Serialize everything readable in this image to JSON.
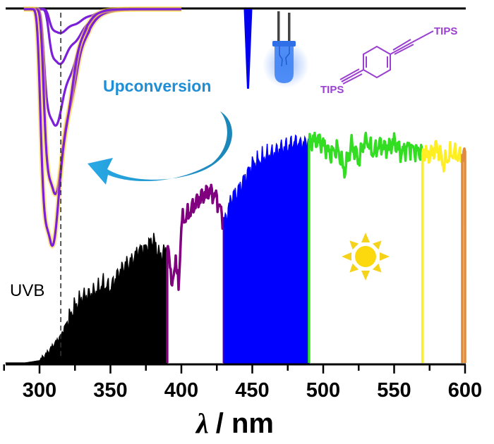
{
  "chart_data": {
    "type": "area",
    "title": "",
    "xlabel_symbol": "λ",
    "xlabel_unit": "/ nm",
    "ylabel": "",
    "xlim": [
      276,
      600
    ],
    "xticks": [
      300,
      350,
      400,
      450,
      500,
      550,
      600
    ],
    "xtick_labels": [
      "300",
      "350",
      "400",
      "450",
      "500",
      "550",
      "600"
    ],
    "grid": false,
    "annotations": {
      "uvb_label": "UVB",
      "uvb_line_nm": 315,
      "upconversion_label": "Upconversion",
      "molecule_label_top": "TIPS",
      "molecule_label_bottom": "TIPS"
    },
    "solar_spectrum": {
      "relative_scale": "0-1",
      "segments": [
        {
          "name": "UV",
          "color": "#000000",
          "range": [
            276,
            390
          ],
          "fill": true
        },
        {
          "name": "violet",
          "color": "#800080",
          "range": [
            390,
            430
          ],
          "fill": false
        },
        {
          "name": "blue",
          "color": "#0000ff",
          "range": [
            430,
            490
          ],
          "fill": true
        },
        {
          "name": "green",
          "color": "#33dd22",
          "range": [
            490,
            570
          ],
          "fill": false
        },
        {
          "name": "yellow",
          "color": "#ffee22",
          "range": [
            570,
            598
          ],
          "fill": false
        },
        {
          "name": "orange",
          "color": "#e08a40",
          "range": [
            598,
            600
          ],
          "fill": false
        }
      ],
      "x": [
        276,
        290,
        300,
        305,
        310,
        315,
        320,
        325,
        330,
        335,
        340,
        345,
        350,
        355,
        360,
        365,
        370,
        375,
        380,
        385,
        390,
        392,
        394,
        396,
        398,
        400,
        405,
        410,
        415,
        420,
        425,
        430,
        432,
        435,
        440,
        445,
        450,
        455,
        460,
        465,
        470,
        475,
        480,
        485,
        490,
        495,
        500,
        505,
        510,
        515,
        520,
        525,
        530,
        535,
        540,
        545,
        550,
        555,
        560,
        565,
        570,
        575,
        580,
        585,
        590,
        595,
        600
      ],
      "y": [
        0.0,
        0.0,
        0.01,
        0.04,
        0.08,
        0.12,
        0.19,
        0.25,
        0.29,
        0.3,
        0.32,
        0.35,
        0.33,
        0.39,
        0.43,
        0.45,
        0.5,
        0.51,
        0.55,
        0.47,
        0.51,
        0.44,
        0.33,
        0.48,
        0.32,
        0.62,
        0.66,
        0.71,
        0.74,
        0.76,
        0.73,
        0.63,
        0.65,
        0.73,
        0.76,
        0.82,
        0.88,
        0.9,
        0.92,
        0.93,
        0.95,
        0.96,
        0.98,
        0.97,
        0.98,
        0.99,
        0.97,
        0.93,
        0.95,
        0.85,
        0.97,
        0.9,
        1.0,
        0.93,
        0.97,
        0.95,
        0.98,
        0.93,
        0.96,
        0.94,
        0.93,
        0.92,
        0.96,
        0.88,
        0.93,
        0.92,
        0.92
      ]
    },
    "absorption_series": [
      {
        "name": "trace-1",
        "color": "#7b1fd9",
        "peak_nm": 313,
        "depth": 0.1
      },
      {
        "name": "trace-2",
        "color": "#7b1fd9",
        "peak_nm": 313,
        "depth": 0.23
      },
      {
        "name": "trace-3",
        "color": "#7b1fd9",
        "peak_nm": 310,
        "depth": 0.49
      },
      {
        "name": "trace-4",
        "color": "#7b1fd9",
        "peak_nm": 310,
        "depth": 0.78
      },
      {
        "name": "trace-5",
        "color": "#7b1fd9",
        "peak_nm": 308,
        "depth": 1.0
      }
    ],
    "led_emission": {
      "color": "#0000ee",
      "peak_nm": 447,
      "depth": 0.34
    }
  }
}
